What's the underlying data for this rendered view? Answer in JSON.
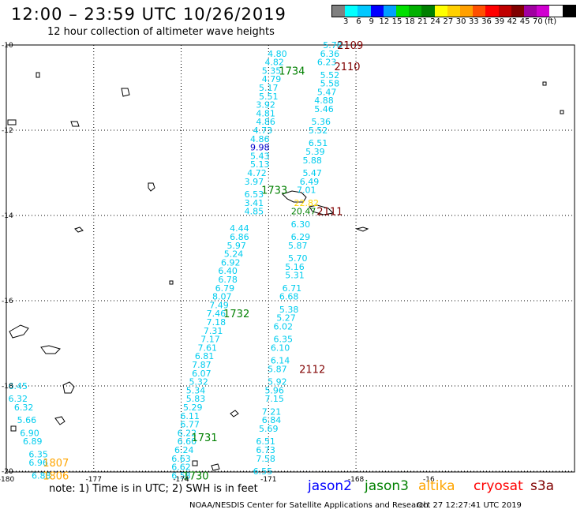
{
  "header": {
    "title": "12:00 – 23:59 UTC 10/26/2019",
    "subtitle": "12 hour collection of altimeter wave heights"
  },
  "color_scale": {
    "colors": [
      "#808080",
      "#00ffff",
      "#00c8ff",
      "#0000ff",
      "#00a0ff",
      "#00e000",
      "#00b000",
      "#008000",
      "#ffff00",
      "#ffd000",
      "#ffa000",
      "#ff5000",
      "#ff0000",
      "#c00000",
      "#800000",
      "#a000a0",
      "#d000d0",
      "#ffffff",
      "#000000"
    ],
    "labels": [
      "3",
      "6",
      "9",
      "12",
      "15",
      "18",
      "21",
      "24",
      "27",
      "30",
      "33",
      "36",
      "39",
      "42",
      "45",
      "70",
      "(ft)"
    ]
  },
  "axes": {
    "lon_labels": [
      "-180",
      "-177",
      "-174",
      "-171",
      "-168",
      "-16"
    ],
    "lat_labels": [
      "-10",
      "-12",
      "-14",
      "-16",
      "-18",
      "-20"
    ]
  },
  "tracks": {
    "jason2_color": "#0000ff",
    "s3a_color": "#800000",
    "cryosat_color": "#ff0000",
    "jason3_color": "#008000",
    "altika_color": "#ffa500",
    "default_value_color": "#00ccee",
    "values": [
      {
        "t": "5.78",
        "lon": -168.8,
        "lat": -10.0
      },
      {
        "t": "6.36",
        "lon": -168.9,
        "lat": -10.2
      },
      {
        "t": "6.23",
        "lon": -169.0,
        "lat": -10.4
      },
      {
        "t": "5.52",
        "lon": -168.9,
        "lat": -10.7
      },
      {
        "t": "5.58",
        "lon": -168.9,
        "lat": -10.9
      },
      {
        "t": "5.47",
        "lon": -169.0,
        "lat": -11.1
      },
      {
        "t": "4.88",
        "lon": -169.1,
        "lat": -11.3
      },
      {
        "t": "5.46",
        "lon": -169.1,
        "lat": -11.5
      },
      {
        "t": "5.36",
        "lon": -169.2,
        "lat": -11.8
      },
      {
        "t": "5.52",
        "lon": -169.3,
        "lat": -12.0
      },
      {
        "t": "6.51",
        "lon": -169.3,
        "lat": -12.3
      },
      {
        "t": "5.39",
        "lon": -169.4,
        "lat": -12.5
      },
      {
        "t": "5.88",
        "lon": -169.5,
        "lat": -12.7
      },
      {
        "t": "5.47",
        "lon": -169.5,
        "lat": -13.0
      },
      {
        "t": "6.49",
        "lon": -169.6,
        "lat": -13.2
      },
      {
        "t": "7.01",
        "lon": -169.7,
        "lat": -13.4
      },
      {
        "t": "22.82",
        "lon": -169.7,
        "lat": -13.7,
        "c": "#ffd700"
      },
      {
        "t": "20.47",
        "lon": -169.8,
        "lat": -13.9,
        "c": "#008000"
      },
      {
        "t": "6.30",
        "lon": -169.9,
        "lat": -14.2
      },
      {
        "t": "6.29",
        "lon": -169.9,
        "lat": -14.5
      },
      {
        "t": "5.87",
        "lon": -170.0,
        "lat": -14.7
      },
      {
        "t": "5.70",
        "lon": -170.0,
        "lat": -15.0
      },
      {
        "t": "5.16",
        "lon": -170.1,
        "lat": -15.2
      },
      {
        "t": "5.31",
        "lon": -170.1,
        "lat": -15.4
      },
      {
        "t": "6.71",
        "lon": -170.2,
        "lat": -15.7
      },
      {
        "t": "6.68",
        "lon": -170.3,
        "lat": -15.9
      },
      {
        "t": "5.38",
        "lon": -170.3,
        "lat": -16.2
      },
      {
        "t": "5.27",
        "lon": -170.4,
        "lat": -16.4
      },
      {
        "t": "6.02",
        "lon": -170.5,
        "lat": -16.6
      },
      {
        "t": "6.35",
        "lon": -170.5,
        "lat": -16.9
      },
      {
        "t": "6.10",
        "lon": -170.6,
        "lat": -17.1
      },
      {
        "t": "6.14",
        "lon": -170.6,
        "lat": -17.4
      },
      {
        "t": "5.87",
        "lon": -170.7,
        "lat": -17.6
      },
      {
        "t": "5.92",
        "lon": -170.7,
        "lat": -17.9
      },
      {
        "t": "5.96",
        "lon": -170.8,
        "lat": -18.1
      },
      {
        "t": "7.15",
        "lon": -170.8,
        "lat": -18.3
      },
      {
        "t": "7.21",
        "lon": -170.9,
        "lat": -18.6
      },
      {
        "t": "6.84",
        "lon": -170.9,
        "lat": -18.8
      },
      {
        "t": "5.69",
        "lon": -171.0,
        "lat": -19.0
      },
      {
        "t": "6.51",
        "lon": -171.1,
        "lat": -19.3
      },
      {
        "t": "6.73",
        "lon": -171.1,
        "lat": -19.5
      },
      {
        "t": "7.58",
        "lon": -171.1,
        "lat": -19.7
      },
      {
        "t": "6.55",
        "lon": -171.2,
        "lat": -20.0
      },
      {
        "t": "4.80",
        "lon": -170.7,
        "lat": -10.2
      },
      {
        "t": "4.82",
        "lon": -170.8,
        "lat": -10.4
      },
      {
        "t": "5.35",
        "lon": -170.9,
        "lat": -10.6
      },
      {
        "t": "4.79",
        "lon": -170.9,
        "lat": -10.8
      },
      {
        "t": "5.17",
        "lon": -171.0,
        "lat": -11.0
      },
      {
        "t": "5.51",
        "lon": -171.0,
        "lat": -11.2
      },
      {
        "t": "3.92",
        "lon": -171.1,
        "lat": -11.4
      },
      {
        "t": "4.81",
        "lon": -171.1,
        "lat": -11.6
      },
      {
        "t": "4.86",
        "lon": -171.1,
        "lat": -11.8
      },
      {
        "t": "4.73",
        "lon": -171.2,
        "lat": -12.0
      },
      {
        "t": "4.86",
        "lon": -171.3,
        "lat": -12.2
      },
      {
        "t": "9.98",
        "lon": -171.3,
        "lat": -12.4,
        "c": "#0000cc"
      },
      {
        "t": "5.43",
        "lon": -171.3,
        "lat": -12.6
      },
      {
        "t": "5.13",
        "lon": -171.3,
        "lat": -12.8
      },
      {
        "t": "4.72",
        "lon": -171.4,
        "lat": -13.0
      },
      {
        "t": "3.97",
        "lon": -171.5,
        "lat": -13.2
      },
      {
        "t": "6.53",
        "lon": -171.5,
        "lat": -13.5
      },
      {
        "t": "3.41",
        "lon": -171.5,
        "lat": -13.7
      },
      {
        "t": "4.85",
        "lon": -171.5,
        "lat": -13.9
      },
      {
        "t": "4.44",
        "lon": -172.0,
        "lat": -14.3
      },
      {
        "t": "6.86",
        "lon": -172.0,
        "lat": -14.5
      },
      {
        "t": "5.97",
        "lon": -172.1,
        "lat": -14.7
      },
      {
        "t": "5.24",
        "lon": -172.2,
        "lat": -14.9
      },
      {
        "t": "6.92",
        "lon": -172.3,
        "lat": -15.1
      },
      {
        "t": "6.40",
        "lon": -172.4,
        "lat": -15.3
      },
      {
        "t": "6.78",
        "lon": -172.4,
        "lat": -15.5
      },
      {
        "t": "6.79",
        "lon": -172.5,
        "lat": -15.7
      },
      {
        "t": "8.07",
        "lon": -172.6,
        "lat": -15.9
      },
      {
        "t": "7.49",
        "lon": -172.7,
        "lat": -16.1
      },
      {
        "t": "7.46",
        "lon": -172.8,
        "lat": -16.3
      },
      {
        "t": "7.18",
        "lon": -172.8,
        "lat": -16.5
      },
      {
        "t": "7.31",
        "lon": -172.9,
        "lat": -16.7
      },
      {
        "t": "7.17",
        "lon": -173.0,
        "lat": -16.9
      },
      {
        "t": "7.61",
        "lon": -173.1,
        "lat": -17.1
      },
      {
        "t": "6.81",
        "lon": -173.2,
        "lat": -17.3
      },
      {
        "t": "7.87",
        "lon": -173.3,
        "lat": -17.5
      },
      {
        "t": "6.07",
        "lon": -173.3,
        "lat": -17.7
      },
      {
        "t": "5.32",
        "lon": -173.4,
        "lat": -17.9
      },
      {
        "t": "5.34",
        "lon": -173.5,
        "lat": -18.1
      },
      {
        "t": "5.83",
        "lon": -173.5,
        "lat": -18.3
      },
      {
        "t": "5.29",
        "lon": -173.6,
        "lat": -18.5
      },
      {
        "t": "6.11",
        "lon": -173.7,
        "lat": -18.7
      },
      {
        "t": "6.77",
        "lon": -173.7,
        "lat": -18.9
      },
      {
        "t": "6.22",
        "lon": -173.8,
        "lat": -19.1
      },
      {
        "t": "6.60",
        "lon": -173.8,
        "lat": -19.3
      },
      {
        "t": "6.24",
        "lon": -173.9,
        "lat": -19.5
      },
      {
        "t": "6.63",
        "lon": -174.0,
        "lat": -19.7
      },
      {
        "t": "6.62",
        "lon": -174.0,
        "lat": -19.9
      },
      {
        "t": "6.58",
        "lon": -174.0,
        "lat": -20.1
      },
      {
        "t": "6.45",
        "lon": -179.6,
        "lat": -18.0
      },
      {
        "t": "6.32",
        "lon": -179.6,
        "lat": -18.3
      },
      {
        "t": "6.32",
        "lon": -179.4,
        "lat": -18.5
      },
      {
        "t": "5.66",
        "lon": -179.3,
        "lat": -18.8
      },
      {
        "t": "6.90",
        "lon": -179.2,
        "lat": -19.1
      },
      {
        "t": "6.89",
        "lon": -179.1,
        "lat": -19.3
      },
      {
        "t": "6.35",
        "lon": -178.9,
        "lat": -19.6
      },
      {
        "t": "6.96",
        "lon": -178.9,
        "lat": -19.8
      },
      {
        "t": "6.88",
        "lon": -178.8,
        "lat": -20.1
      }
    ],
    "time_labels": [
      {
        "t": "2109",
        "lon": -168.2,
        "lat": -10.0,
        "c": "#800000"
      },
      {
        "t": "2110",
        "lon": -168.3,
        "lat": -10.5,
        "c": "#800000"
      },
      {
        "t": "1734",
        "lon": -170.2,
        "lat": -10.6,
        "c": "#008000"
      },
      {
        "t": "1733",
        "lon": -170.8,
        "lat": -13.4,
        "c": "#008000"
      },
      {
        "t": "2111",
        "lon": -168.9,
        "lat": -13.9,
        "c": "#800000"
      },
      {
        "t": "1732",
        "lon": -172.1,
        "lat": -16.3,
        "c": "#008000"
      },
      {
        "t": "2112",
        "lon": -169.5,
        "lat": -17.6,
        "c": "#800000"
      },
      {
        "t": "1731",
        "lon": -173.2,
        "lat": -19.2,
        "c": "#008000"
      },
      {
        "t": "1730",
        "lon": -173.5,
        "lat": -20.1,
        "c": "#008000"
      },
      {
        "t": "1807",
        "lon": -178.3,
        "lat": -19.8,
        "c": "#ffa500"
      },
      {
        "t": "1806",
        "lon": -178.3,
        "lat": -20.1,
        "c": "#ffa500"
      }
    ]
  },
  "footer": {
    "note": "note: 1) Time is in UTC; 2) SWH is in feet",
    "sats": [
      "jason2",
      "jason3",
      "altika",
      "cryosat",
      "s3a"
    ],
    "credit": "NOAA/NESDIS Center for Satellite Applications and Research",
    "timestamp": "Oct 27 12:27:41 UTC 2019"
  }
}
